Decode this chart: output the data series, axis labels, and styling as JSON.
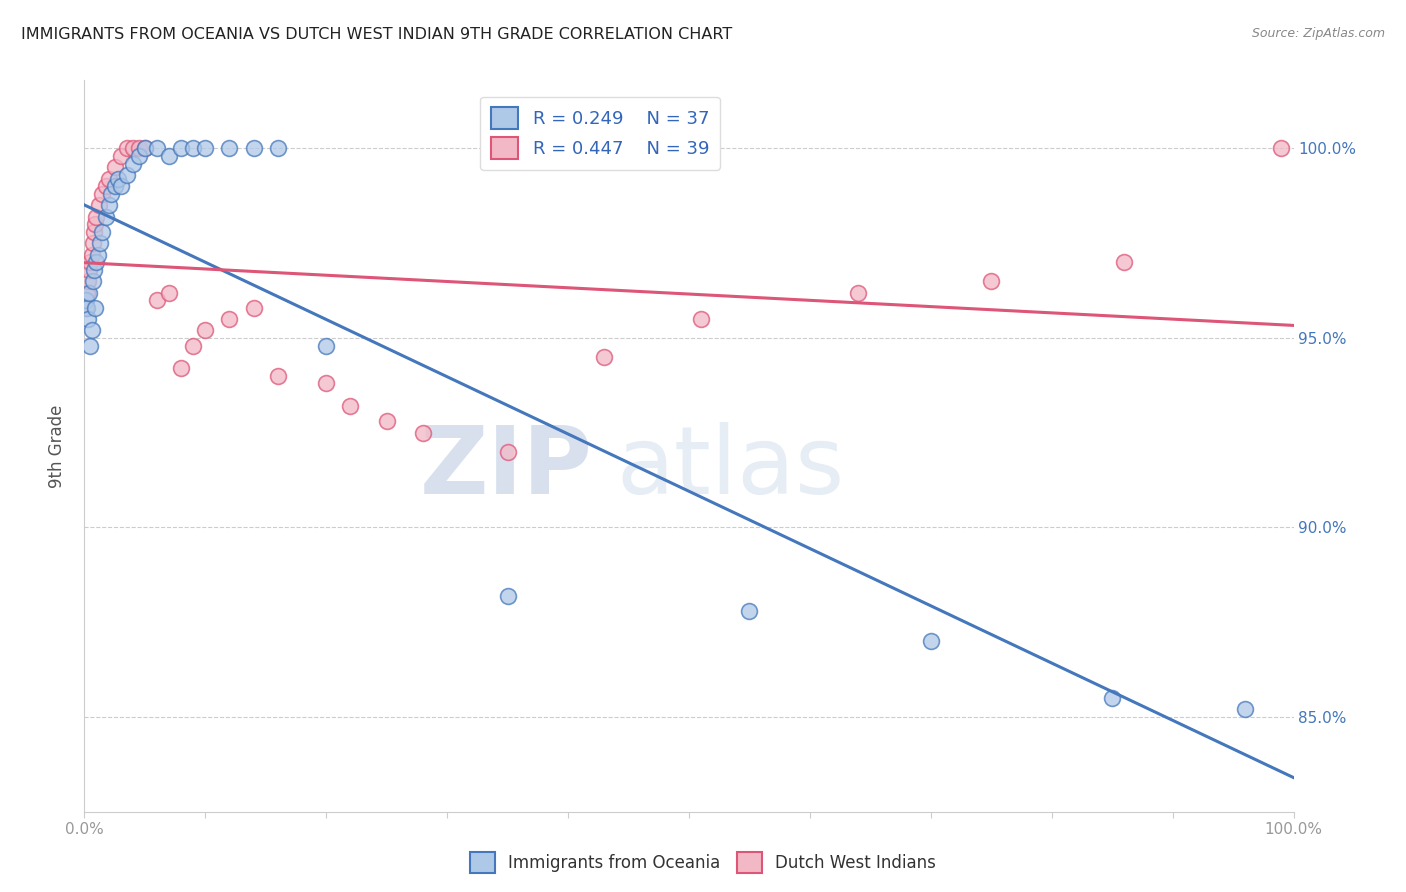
{
  "title": "IMMIGRANTS FROM OCEANIA VS DUTCH WEST INDIAN 9TH GRADE CORRELATION CHART",
  "source": "Source: ZipAtlas.com",
  "ylabel": "9th Grade",
  "ytick_labels": [
    "85.0%",
    "90.0%",
    "95.0%",
    "100.0%"
  ],
  "ytick_values": [
    0.85,
    0.9,
    0.95,
    1.0
  ],
  "legend_blue_label": "Immigrants from Oceania",
  "legend_pink_label": "Dutch West Indians",
  "R_blue": 0.249,
  "N_blue": 37,
  "R_pink": 0.447,
  "N_pink": 39,
  "blue_color": "#aec8e8",
  "pink_color": "#f2b8c6",
  "line_blue_color": "#4477bb",
  "line_pink_color": "#dd5577",
  "blue_scatter_x": [
    0.001,
    0.002,
    0.003,
    0.004,
    0.005,
    0.006,
    0.007,
    0.008,
    0.009,
    0.01,
    0.011,
    0.013,
    0.015,
    0.018,
    0.02,
    0.022,
    0.025,
    0.028,
    0.03,
    0.035,
    0.04,
    0.045,
    0.05,
    0.06,
    0.07,
    0.08,
    0.09,
    0.1,
    0.12,
    0.14,
    0.16,
    0.2,
    0.35,
    0.55,
    0.7,
    0.85,
    0.96
  ],
  "blue_scatter_y": [
    0.96,
    0.958,
    0.955,
    0.962,
    0.948,
    0.952,
    0.965,
    0.968,
    0.958,
    0.97,
    0.972,
    0.975,
    0.978,
    0.982,
    0.985,
    0.988,
    0.99,
    0.992,
    0.99,
    0.993,
    0.996,
    0.998,
    1.0,
    1.0,
    0.998,
    1.0,
    1.0,
    1.0,
    1.0,
    1.0,
    1.0,
    0.948,
    0.882,
    0.878,
    0.87,
    0.855,
    0.852
  ],
  "pink_scatter_x": [
    0.001,
    0.002,
    0.003,
    0.004,
    0.005,
    0.006,
    0.007,
    0.008,
    0.009,
    0.01,
    0.012,
    0.015,
    0.018,
    0.02,
    0.025,
    0.03,
    0.035,
    0.04,
    0.045,
    0.05,
    0.06,
    0.07,
    0.08,
    0.09,
    0.1,
    0.12,
    0.14,
    0.16,
    0.2,
    0.22,
    0.25,
    0.28,
    0.35,
    0.43,
    0.51,
    0.64,
    0.75,
    0.86,
    0.99
  ],
  "pink_scatter_y": [
    0.958,
    0.962,
    0.965,
    0.968,
    0.97,
    0.972,
    0.975,
    0.978,
    0.98,
    0.982,
    0.985,
    0.988,
    0.99,
    0.992,
    0.995,
    0.998,
    1.0,
    1.0,
    1.0,
    1.0,
    0.96,
    0.962,
    0.942,
    0.948,
    0.952,
    0.955,
    0.958,
    0.94,
    0.938,
    0.932,
    0.928,
    0.925,
    0.92,
    0.945,
    0.955,
    0.962,
    0.965,
    0.97,
    1.0
  ],
  "xmin": 0.0,
  "xmax": 1.0,
  "ymin": 0.825,
  "ymax": 1.018,
  "watermark_zip": "ZIP",
  "watermark_atlas": "atlas",
  "marker_size": 130,
  "marker_linewidth": 1.2
}
